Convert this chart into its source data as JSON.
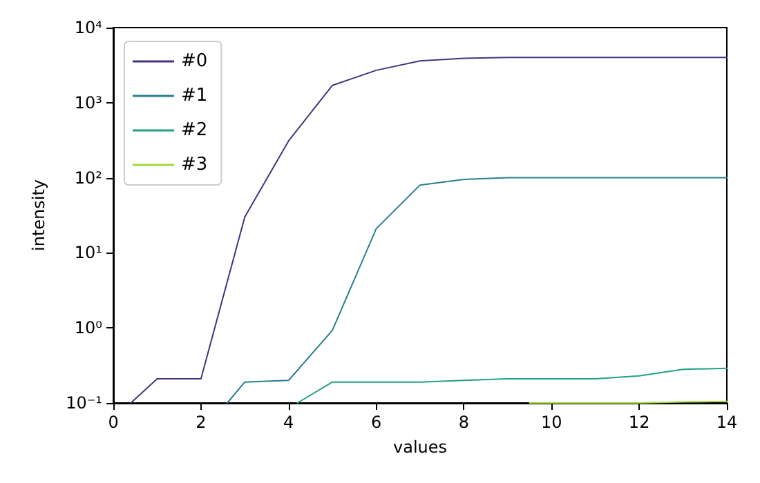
{
  "chart_data": {
    "type": "line",
    "xlabel": "values",
    "ylabel": "intensity",
    "log": "y",
    "xlim": [
      0,
      14
    ],
    "xticks": [
      0,
      2,
      4,
      6,
      8,
      10,
      12,
      14
    ],
    "ylim": [
      0.1,
      10000
    ],
    "yticks": [
      {
        "value": 0.1,
        "label": "10⁻¹"
      },
      {
        "value": 1,
        "label": "10⁰"
      },
      {
        "value": 10,
        "label": "10¹"
      },
      {
        "value": 100,
        "label": "10²"
      },
      {
        "value": 1000,
        "label": "10³"
      },
      {
        "value": 10000,
        "label": "10⁴"
      }
    ],
    "grid": false,
    "legend": "top left",
    "marker": "none",
    "line_style": "solid",
    "series": [
      {
        "name": "#0",
        "color": "#46327e",
        "x": [
          0.4,
          1,
          2,
          3,
          4,
          5,
          6,
          7,
          8,
          9,
          10,
          11,
          12,
          13,
          14
        ],
        "values": [
          0.1,
          0.21,
          0.21,
          30,
          310,
          1700,
          2700,
          3600,
          3900,
          4000,
          4000,
          4000,
          4000,
          4000,
          4000
        ]
      },
      {
        "name": "#1",
        "color": "#277f8e",
        "x": [
          2.6,
          3,
          4,
          5,
          6,
          7,
          8,
          9,
          10,
          11,
          12,
          13,
          14
        ],
        "values": [
          0.1,
          0.19,
          0.2,
          0.93,
          21,
          80,
          95,
          100,
          100,
          100,
          100,
          100,
          100
        ]
      },
      {
        "name": "#2",
        "color": "#1fa187",
        "x": [
          4.2,
          5,
          6,
          7,
          8,
          9,
          10,
          11,
          12,
          13,
          14
        ],
        "values": [
          0.1,
          0.19,
          0.19,
          0.19,
          0.2,
          0.21,
          0.21,
          0.21,
          0.23,
          0.28,
          0.29
        ]
      },
      {
        "name": "#3",
        "color": "#a0da39",
        "x": [
          9.5,
          10,
          11,
          12,
          13,
          14
        ],
        "values": [
          0.1,
          0.1,
          0.1,
          0.1,
          0.103,
          0.105
        ]
      }
    ]
  }
}
